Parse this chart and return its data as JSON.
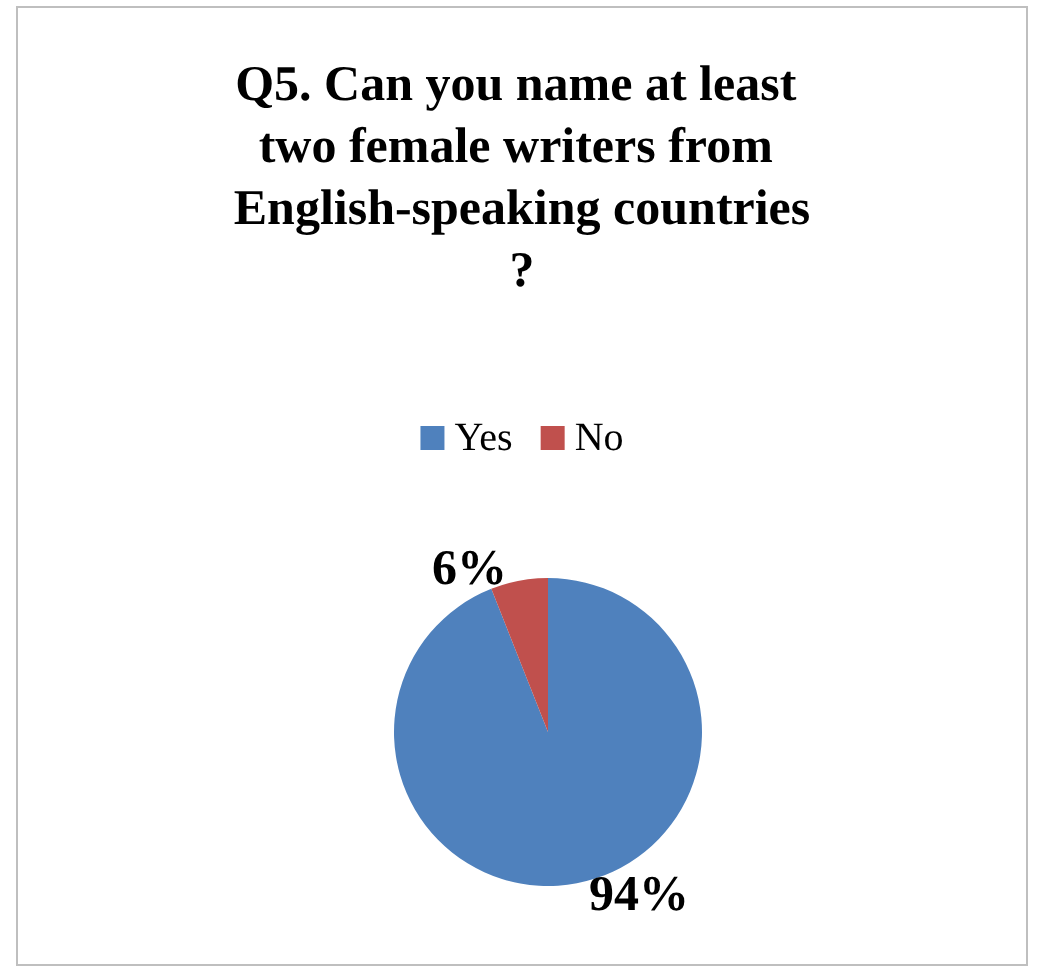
{
  "chart_data": {
    "type": "pie",
    "title": "Q5. Can you name at least two female writers from English-speaking countries?",
    "categories": [
      "Yes",
      "No"
    ],
    "values": [
      94,
      6
    ],
    "colors": [
      "#4f81bd",
      "#c0504d"
    ],
    "value_labels": [
      "94%",
      "6%"
    ],
    "legend": "top"
  }
}
